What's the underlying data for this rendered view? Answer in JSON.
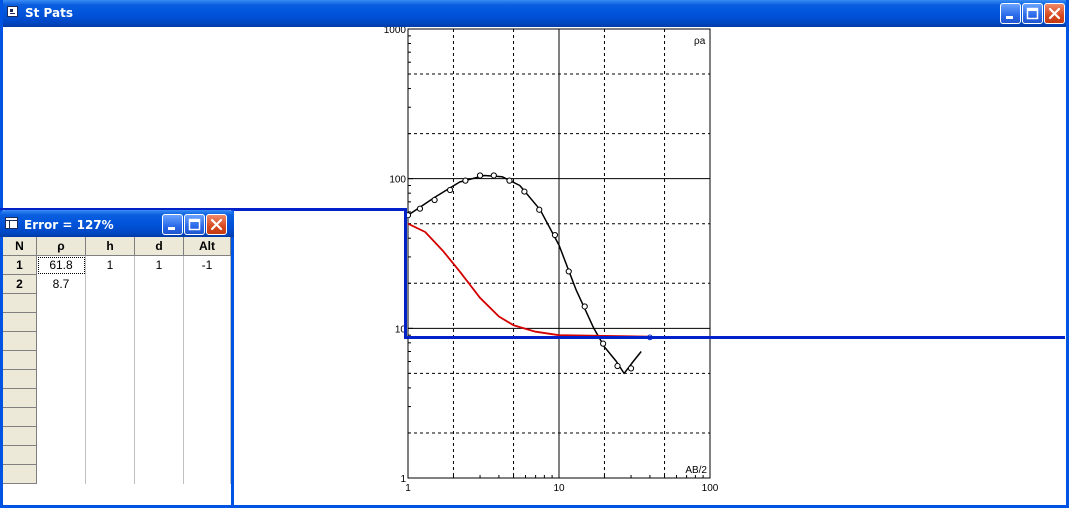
{
  "main_window": {
    "title": "St Pats"
  },
  "child_window": {
    "title": "Error = 127%",
    "table": {
      "columns": [
        "N",
        "ρ",
        "h",
        "d",
        "Alt"
      ],
      "rows": [
        {
          "n": "1",
          "rho": "61.8",
          "h": "1",
          "d": "1",
          "alt": "-1"
        },
        {
          "n": "2",
          "rho": "8.7",
          "h": "",
          "d": "",
          "alt": ""
        }
      ],
      "empty_rows": 10
    }
  },
  "chart_data": {
    "type": "scatter",
    "x_scale": "log",
    "y_scale": "log",
    "xlim": [
      1,
      100
    ],
    "ylim": [
      1,
      1000
    ],
    "x_tick_labels": [
      "1",
      "10",
      "100"
    ],
    "y_tick_labels": [
      "1",
      "10",
      "100",
      "1000"
    ],
    "y_axis_label": "ρa",
    "x_axis_label": "AB/2",
    "grid": true,
    "series": [
      {
        "kind": "points",
        "color": "#000000",
        "points": [
          [
            1.0,
            57
          ],
          [
            1.2,
            63
          ],
          [
            1.5,
            72
          ],
          [
            1.9,
            84
          ],
          [
            2.4,
            97
          ],
          [
            3.0,
            105
          ],
          [
            3.7,
            105
          ],
          [
            4.7,
            97
          ],
          [
            5.9,
            82
          ],
          [
            7.4,
            62
          ],
          [
            9.4,
            42
          ],
          [
            11.6,
            24
          ],
          [
            14.8,
            14
          ],
          [
            19.6,
            7.9
          ],
          [
            24.4,
            5.6
          ],
          [
            30.0,
            5.4
          ]
        ]
      },
      {
        "kind": "line",
        "color": "#000000",
        "points": [
          [
            1.0,
            57
          ],
          [
            1.5,
            75
          ],
          [
            2.2,
            95
          ],
          [
            3.2,
            105
          ],
          [
            4.2,
            103
          ],
          [
            5.5,
            90
          ],
          [
            7.5,
            62
          ],
          [
            10,
            36
          ],
          [
            13,
            18
          ],
          [
            17,
            10
          ],
          [
            20,
            7.5
          ],
          [
            24,
            6
          ],
          [
            27,
            5
          ],
          [
            31,
            6
          ],
          [
            35,
            7
          ]
        ]
      },
      {
        "kind": "line",
        "color": "#d40000",
        "points": [
          [
            1.0,
            50
          ],
          [
            1.3,
            44
          ],
          [
            1.7,
            33
          ],
          [
            2.2,
            24
          ],
          [
            3.0,
            16
          ],
          [
            4.0,
            12
          ],
          [
            5.0,
            10.5
          ],
          [
            7.0,
            9.5
          ],
          [
            10,
            9.0
          ],
          [
            20,
            8.9
          ],
          [
            40,
            8.8
          ]
        ]
      },
      {
        "kind": "step_model",
        "color": "#0022c8",
        "layers": [
          {
            "resistivity": 61.8,
            "depth_top": 1
          },
          {
            "resistivity": 8.7
          }
        ]
      }
    ]
  }
}
